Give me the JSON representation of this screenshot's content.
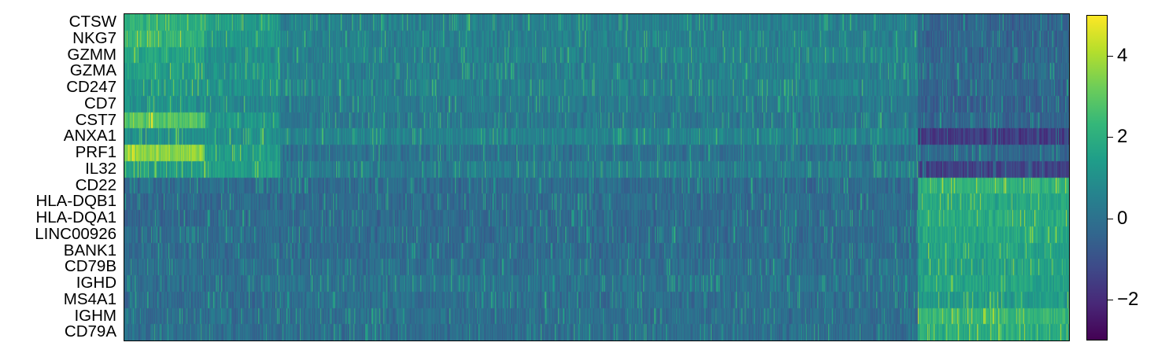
{
  "chart_data": {
    "type": "heatmap",
    "title": "",
    "xlabel": "",
    "ylabel": "",
    "genes": [
      "CTSW",
      "NKG7",
      "GZMM",
      "GZMA",
      "CD247",
      "CD7",
      "CST7",
      "ANXA1",
      "PRF1",
      "IL32",
      "CD22",
      "HLA-DQB1",
      "HLA-DQA1",
      "LINC00926",
      "BANK1",
      "CD79B",
      "IGHD",
      "MS4A1",
      "IGHM",
      "CD79A"
    ],
    "cell_groups": [
      {
        "fraction": 0.085,
        "means": [
          2.0,
          2.2,
          1.6,
          1.5,
          1.2,
          1.0,
          2.8,
          1.0,
          3.6,
          1.4,
          -0.2,
          -0.3,
          -0.3,
          -0.2,
          -0.2,
          -0.1,
          -0.1,
          -0.2,
          -0.1,
          -0.1
        ]
      },
      {
        "fraction": 0.08,
        "means": [
          1.4,
          1.3,
          1.0,
          1.0,
          1.0,
          0.7,
          1.2,
          1.0,
          1.4,
          1.5,
          -0.2,
          -0.2,
          -0.2,
          -0.2,
          -0.2,
          -0.1,
          -0.1,
          -0.2,
          -0.1,
          -0.1
        ]
      },
      {
        "fraction": 0.675,
        "means": [
          0.5,
          0.5,
          0.5,
          0.4,
          0.5,
          0.3,
          0.2,
          0.6,
          0.0,
          0.3,
          -0.2,
          -0.2,
          -0.2,
          -0.2,
          -0.2,
          -0.1,
          0.0,
          -0.1,
          -0.1,
          -0.1
        ]
      },
      {
        "fraction": 0.16,
        "means": [
          -0.4,
          -0.4,
          -0.4,
          -0.3,
          -0.4,
          -0.6,
          -0.4,
          -1.6,
          -0.3,
          -1.4,
          2.2,
          1.8,
          1.9,
          1.8,
          1.6,
          1.5,
          1.6,
          1.3,
          2.3,
          2.0
        ]
      }
    ],
    "colorbar": {
      "colormap": "viridis",
      "vmin": -3,
      "vmax": 5,
      "ticks": [
        "4",
        "2",
        "0",
        "−2"
      ],
      "tick_values": [
        4,
        2,
        0,
        -2
      ]
    }
  }
}
